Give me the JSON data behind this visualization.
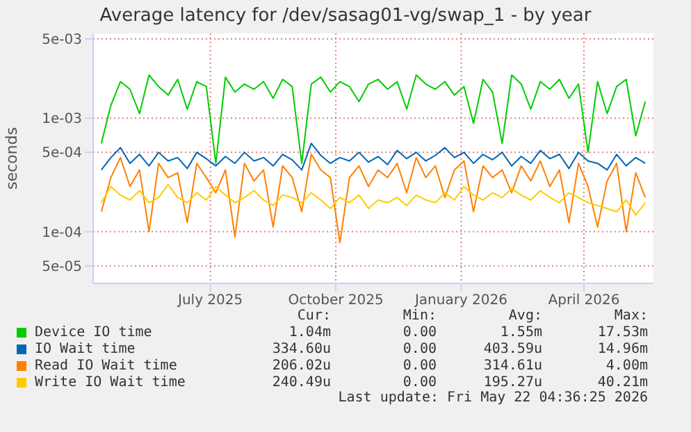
{
  "chart_data": {
    "type": "line",
    "title": "Average latency for /dev/sasag01-vg/swap_1 - by year",
    "ylabel": "seconds",
    "x": [
      "2025-04-12",
      "2025-04-19",
      "2025-04-26",
      "2025-05-03",
      "2025-05-10",
      "2025-05-17",
      "2025-05-24",
      "2025-05-31",
      "2025-06-07",
      "2025-06-14",
      "2025-06-21",
      "2025-06-28",
      "2025-07-05",
      "2025-07-12",
      "2025-07-19",
      "2025-07-26",
      "2025-08-02",
      "2025-08-09",
      "2025-08-16",
      "2025-08-23",
      "2025-08-30",
      "2025-09-06",
      "2025-09-13",
      "2025-09-20",
      "2025-09-27",
      "2025-10-04",
      "2025-10-11",
      "2025-10-18",
      "2025-10-25",
      "2025-11-01",
      "2025-11-08",
      "2025-11-15",
      "2025-11-22",
      "2025-11-29",
      "2025-12-06",
      "2025-12-13",
      "2025-12-20",
      "2025-12-27",
      "2026-01-03",
      "2026-01-10",
      "2026-01-17",
      "2026-01-24",
      "2026-01-31",
      "2026-02-07",
      "2026-02-14",
      "2026-02-21",
      "2026-02-28",
      "2026-03-07",
      "2026-03-14",
      "2026-03-21",
      "2026-03-28",
      "2026-04-04",
      "2026-04-11",
      "2026-04-18",
      "2026-04-25",
      "2026-05-02",
      "2026-05-09",
      "2026-05-16"
    ],
    "series": [
      {
        "name": "Device IO time",
        "color": "#00cc00",
        "values": [
          0.0006,
          0.0013,
          0.0021,
          0.0018,
          0.0011,
          0.0024,
          0.0019,
          0.0016,
          0.0022,
          0.0012,
          0.0021,
          0.0019,
          0.0004,
          0.0023,
          0.0017,
          0.002,
          0.0018,
          0.0021,
          0.0015,
          0.0022,
          0.0019,
          0.0004,
          0.002,
          0.0023,
          0.0017,
          0.0021,
          0.0019,
          0.0014,
          0.002,
          0.0022,
          0.0018,
          0.0021,
          0.0012,
          0.0024,
          0.002,
          0.0018,
          0.0021,
          0.0016,
          0.0019,
          0.0009,
          0.0022,
          0.0017,
          0.0006,
          0.0024,
          0.002,
          0.0012,
          0.0021,
          0.0018,
          0.0022,
          0.0015,
          0.002,
          0.0005,
          0.0021,
          0.0011,
          0.0019,
          0.0022,
          0.0007,
          0.0014
        ]
      },
      {
        "name": "IO Wait time",
        "color": "#0066b3",
        "values": [
          0.00035,
          0.00045,
          0.00055,
          0.0004,
          0.00048,
          0.00038,
          0.0005,
          0.00042,
          0.00045,
          0.00036,
          0.0005,
          0.00044,
          0.00038,
          0.00046,
          0.0004,
          0.0005,
          0.00042,
          0.00045,
          0.00038,
          0.00048,
          0.00043,
          0.00035,
          0.0006,
          0.00047,
          0.0004,
          0.00045,
          0.00042,
          0.0005,
          0.00041,
          0.00046,
          0.00039,
          0.00052,
          0.00044,
          0.0005,
          0.00042,
          0.00047,
          0.00055,
          0.00045,
          0.0005,
          0.0004,
          0.00048,
          0.00043,
          0.0005,
          0.00038,
          0.00046,
          0.0004,
          0.00052,
          0.00044,
          0.00048,
          0.00036,
          0.0005,
          0.00042,
          0.0004,
          0.00035,
          0.00048,
          0.00038,
          0.00045,
          0.0004
        ]
      },
      {
        "name": "Read IO Wait time",
        "color": "#ff8000",
        "values": [
          0.00015,
          0.0003,
          0.00045,
          0.00025,
          0.00035,
          0.0001,
          0.0004,
          0.0003,
          0.00033,
          0.00012,
          0.0004,
          0.0003,
          0.00022,
          0.00035,
          9e-05,
          0.0004,
          0.00028,
          0.00035,
          0.00011,
          0.00038,
          0.0003,
          0.00015,
          0.00048,
          0.00035,
          0.0003,
          8e-05,
          0.0003,
          0.00038,
          0.00025,
          0.00035,
          0.0003,
          0.0004,
          0.00022,
          0.00045,
          0.0003,
          0.00038,
          0.0002,
          0.00035,
          0.00042,
          0.00015,
          0.00038,
          0.0003,
          0.00035,
          0.00022,
          0.00038,
          0.00028,
          0.00042,
          0.00025,
          0.00035,
          0.00012,
          0.0004,
          0.00025,
          0.00011,
          0.00028,
          0.0004,
          0.0001,
          0.00033,
          0.0002
        ]
      },
      {
        "name": "Write IO Wait time",
        "color": "#ffcc00",
        "values": [
          0.00018,
          0.00025,
          0.00021,
          0.00019,
          0.00023,
          0.00018,
          0.0002,
          0.00026,
          0.0002,
          0.00018,
          0.00022,
          0.00019,
          0.00025,
          0.00021,
          0.00018,
          0.0002,
          0.00023,
          0.00019,
          0.00017,
          0.00021,
          0.0002,
          0.00018,
          0.00022,
          0.00019,
          0.00016,
          0.0002,
          0.00018,
          0.00021,
          0.00016,
          0.00019,
          0.00018,
          0.0002,
          0.00017,
          0.00021,
          0.00019,
          0.00018,
          0.00022,
          0.00019,
          0.00025,
          0.00021,
          0.00019,
          0.00022,
          0.0002,
          0.00024,
          0.00021,
          0.00019,
          0.00023,
          0.0002,
          0.00018,
          0.00022,
          0.0002,
          0.00018,
          0.00017,
          0.00016,
          0.00015,
          0.00019,
          0.00014,
          0.00018
        ]
      }
    ],
    "log": "y",
    "ylim": [
      3.5e-05,
      0.0056
    ],
    "yticks": [
      {
        "value": 5e-05,
        "label": "5e-05"
      },
      {
        "value": 0.0001,
        "label": "1e-04"
      },
      {
        "value": 0.0005,
        "label": "5e-04"
      },
      {
        "value": 0.001,
        "label": "1e-03"
      },
      {
        "value": 0.005,
        "label": "5e-03"
      }
    ],
    "xlim": [
      "2025-04-06",
      "2026-05-22"
    ],
    "xticks": [
      {
        "value": "2025-07-01",
        "label": "July 2025"
      },
      {
        "value": "2025-10-01",
        "label": "October 2025"
      },
      {
        "value": "2026-01-01",
        "label": "January 2026"
      },
      {
        "value": "2026-04-01",
        "label": "April 2026"
      }
    ],
    "grid": true,
    "legend": "bottom",
    "marker": "none",
    "line_style": "solid",
    "annotations": [
      "Cur:",
      "Min:",
      "Avg:",
      "Max:",
      "1.04m",
      "0.00",
      "1.55m",
      "17.53m",
      "334.60u",
      "0.00",
      "403.59u",
      "14.96m",
      "206.02u",
      "0.00",
      "314.61u",
      "4.00m",
      "240.49u",
      "0.00",
      "195.27u",
      "40.21m",
      "Last update: Fri May 22 04:36:25 2026"
    ]
  }
}
